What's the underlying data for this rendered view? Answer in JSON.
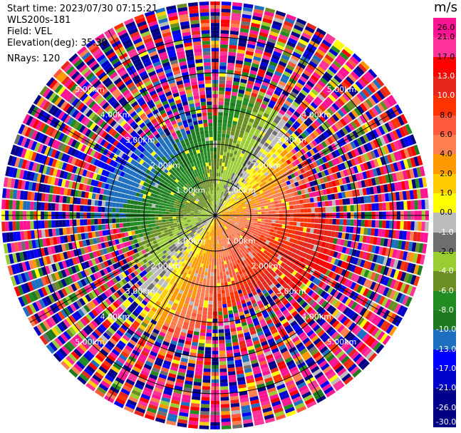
{
  "info": {
    "start_time": "Start time: 2023/07/30 07:15:21",
    "instrument": "WLS200s-181",
    "field": "Field: VEL",
    "elevation": "Elevation(deg): 35.30",
    "nrays": "NRays: 120"
  },
  "colorbar": {
    "unit": "m/s",
    "ticks": [
      "26.0",
      "21.0",
      "17.0",
      "13.0",
      "10.0",
      "8.0",
      "6.0",
      "4.0",
      "2.0",
      "1.0",
      "0.0",
      "-1.0",
      "-2.0",
      "-4.0",
      "-6.0",
      "-8.0",
      "-10.0",
      "-13.0",
      "-17.0",
      "-21.0",
      "-26.0",
      "-30.0"
    ],
    "colors": [
      "#ff1493",
      "#ff3399",
      "#ff0000",
      "#e8271c",
      "#ff3300",
      "#ff5a3c",
      "#ff7f50",
      "#ff9900",
      "#ffcc00",
      "#ffff00",
      "#bbbbbb",
      "#6e6e6e",
      "#9acd32",
      "#6b8e23",
      "#228b22",
      "#1e7a1e",
      "#1e6fc0",
      "#0000ff",
      "#0000cc",
      "#00008b",
      "#000080"
    ]
  },
  "chart_data": {
    "type": "heatmap",
    "projection": "polar PPI",
    "field": "VEL",
    "units": "m/s",
    "nrays": 120,
    "elevation_deg": 35.3,
    "range_rings_km": [
      1,
      2,
      3,
      4,
      5
    ],
    "ring_labels": [
      "1.00km",
      "2.00km",
      "3.00km",
      "4.00km",
      "5.00km"
    ],
    "vmin": -30,
    "vmax": 30,
    "pattern": "Negative (receding) velocities toward upper-left, positive (approaching) toward lower-right near center; noisy speckle beyond ~3 km"
  }
}
